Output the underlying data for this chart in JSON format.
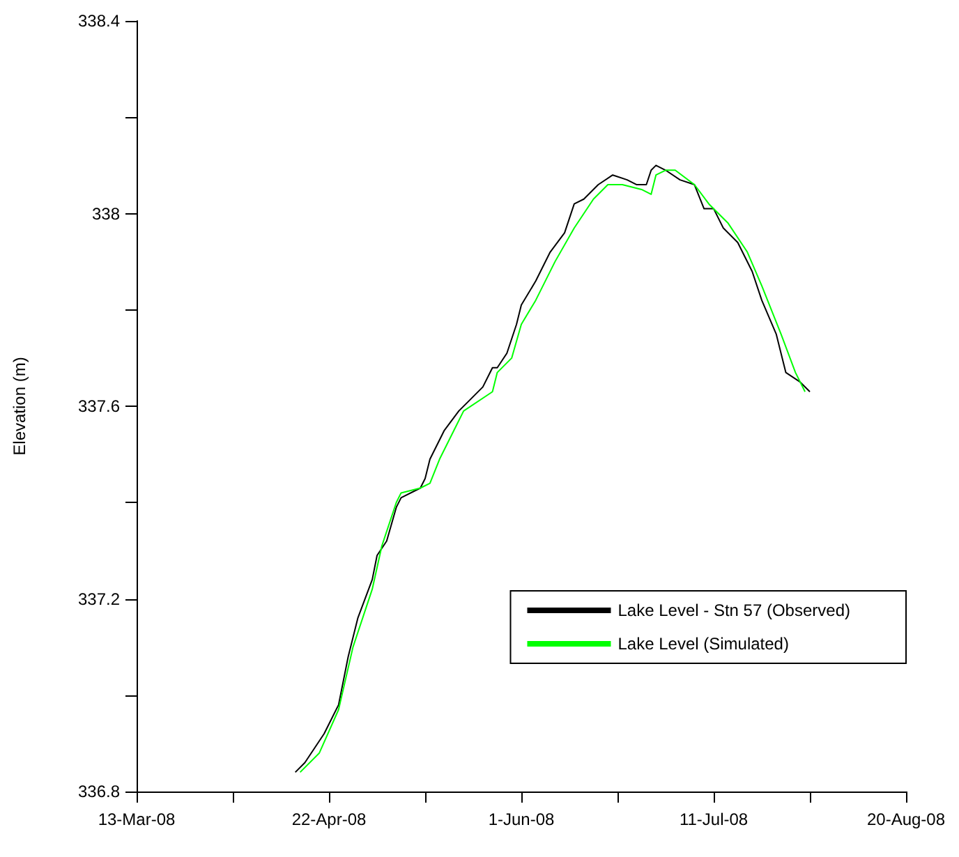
{
  "chart_data": {
    "type": "line",
    "ylabel": "Elevation (m)",
    "xlim": [
      "2008-03-13",
      "2008-08-20"
    ],
    "xticks": [
      {
        "value": "2008-03-13",
        "label": "13-Mar-08"
      },
      {
        "value": "2008-04-02",
        "label": null
      },
      {
        "value": "2008-04-22",
        "label": "22-Apr-08"
      },
      {
        "value": "2008-05-12",
        "label": null
      },
      {
        "value": "2008-06-01",
        "label": "1-Jun-08"
      },
      {
        "value": "2008-06-21",
        "label": null
      },
      {
        "value": "2008-07-11",
        "label": "11-Jul-08"
      },
      {
        "value": "2008-07-31",
        "label": null
      },
      {
        "value": "2008-08-20",
        "label": "20-Aug-08"
      }
    ],
    "ylim": [
      336.8,
      338.4
    ],
    "yticks": [
      336.8,
      {
        "value": 337,
        "label": null
      },
      337.2,
      {
        "value": 337.4,
        "label": null
      },
      337.6,
      {
        "value": 337.8,
        "label": null
      },
      338,
      {
        "value": 338.2,
        "label": null
      },
      338.4
    ],
    "grid": false,
    "legend": "bottom right",
    "marker": "none",
    "line_style": "solid",
    "series": [
      {
        "name": "Lake Level - Stn 57 (Observed)",
        "color": "#000000",
        "x": [
          "2008-04-15",
          "2008-04-17",
          "2008-04-21",
          "2008-04-24",
          "2008-04-26",
          "2008-04-28",
          "2008-05-01",
          "2008-05-02",
          "2008-05-04",
          "2008-05-06",
          "2008-05-07",
          "2008-05-11",
          "2008-05-12",
          "2008-05-13",
          "2008-05-16",
          "2008-05-19",
          "2008-05-21",
          "2008-05-24",
          "2008-05-26",
          "2008-05-27",
          "2008-05-29",
          "2008-05-31",
          "2008-06-01",
          "2008-06-04",
          "2008-06-07",
          "2008-06-10",
          "2008-06-12",
          "2008-06-14",
          "2008-06-17",
          "2008-06-20",
          "2008-06-23",
          "2008-06-25",
          "2008-06-27",
          "2008-06-28",
          "2008-06-29",
          "2008-07-01",
          "2008-07-04",
          "2008-07-07",
          "2008-07-09",
          "2008-07-11",
          "2008-07-13",
          "2008-07-16",
          "2008-07-19",
          "2008-07-21",
          "2008-07-24",
          "2008-07-26",
          "2008-07-29",
          "2008-07-31"
        ],
        "values": [
          336.84,
          336.86,
          336.92,
          336.98,
          337.08,
          337.16,
          337.24,
          337.29,
          337.32,
          337.39,
          337.41,
          337.43,
          337.45,
          337.49,
          337.55,
          337.59,
          337.61,
          337.64,
          337.68,
          337.68,
          337.71,
          337.77,
          337.81,
          337.86,
          337.92,
          337.96,
          338.02,
          338.03,
          338.06,
          338.08,
          338.07,
          338.06,
          338.06,
          338.09,
          338.1,
          338.09,
          338.07,
          338.06,
          338.01,
          338.01,
          337.97,
          337.94,
          337.88,
          337.82,
          337.75,
          337.67,
          337.65,
          337.63
        ]
      },
      {
        "name": "Lake Level (Simulated)",
        "color": "#00ff00",
        "x": [
          "2008-04-16",
          "2008-04-20",
          "2008-04-24",
          "2008-04-27",
          "2008-05-01",
          "2008-05-03",
          "2008-05-06",
          "2008-05-07",
          "2008-05-11",
          "2008-05-13",
          "2008-05-15",
          "2008-05-18",
          "2008-05-20",
          "2008-05-26",
          "2008-05-27",
          "2008-05-30",
          "2008-06-01",
          "2008-06-04",
          "2008-06-08",
          "2008-06-12",
          "2008-06-16",
          "2008-06-19",
          "2008-06-22",
          "2008-06-26",
          "2008-06-28",
          "2008-06-29",
          "2008-07-01",
          "2008-07-03",
          "2008-07-07",
          "2008-07-10",
          "2008-07-12",
          "2008-07-14",
          "2008-07-18",
          "2008-07-21",
          "2008-07-25",
          "2008-07-28",
          "2008-07-30"
        ],
        "values": [
          336.84,
          336.88,
          336.97,
          337.1,
          337.22,
          337.31,
          337.4,
          337.42,
          337.43,
          337.44,
          337.49,
          337.55,
          337.59,
          337.63,
          337.67,
          337.7,
          337.77,
          337.82,
          337.9,
          337.97,
          338.03,
          338.06,
          338.06,
          338.05,
          338.04,
          338.08,
          338.09,
          338.09,
          338.06,
          338.02,
          338.0,
          337.98,
          337.92,
          337.85,
          337.75,
          337.67,
          337.63
        ]
      }
    ]
  }
}
